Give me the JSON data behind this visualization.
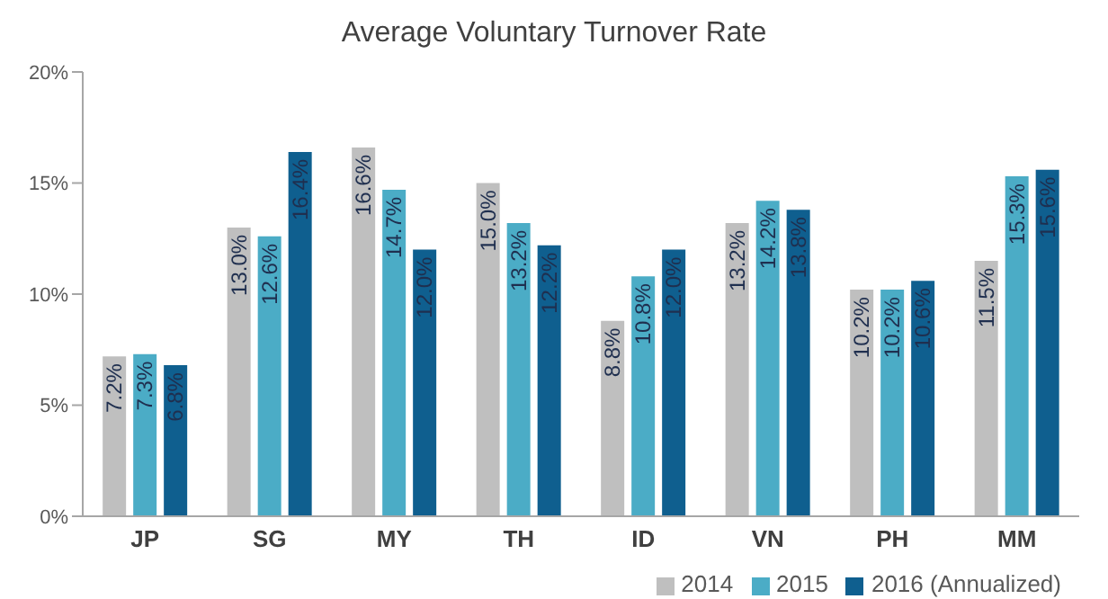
{
  "chart_data": {
    "type": "bar",
    "title": "Average Voluntary Turnover Rate",
    "categories": [
      "JP",
      "SG",
      "MY",
      "TH",
      "ID",
      "VN",
      "PH",
      "MM"
    ],
    "series": [
      {
        "name": "2014",
        "color": "#bfbfbf",
        "values": [
          7.2,
          13.0,
          16.6,
          15.0,
          8.8,
          13.2,
          10.2,
          11.5
        ],
        "value_labels": [
          "7.2%",
          "13.0%",
          "16.6%",
          "15.0%",
          "8.8%",
          "13.2%",
          "10.2%",
          "11.5%"
        ]
      },
      {
        "name": "2015",
        "color": "#4bacc6",
        "values": [
          7.3,
          12.6,
          14.7,
          13.2,
          10.8,
          14.2,
          10.2,
          15.3
        ],
        "value_labels": [
          "7.3%",
          "12.6%",
          "14.7%",
          "13.2%",
          "10.8%",
          "14.2%",
          "10.2%",
          "15.3%"
        ]
      },
      {
        "name": "2016 (Annualized)",
        "color": "#0f5f8f",
        "values": [
          6.8,
          16.4,
          12.0,
          12.2,
          12.0,
          13.8,
          10.6,
          15.6
        ],
        "value_labels": [
          "6.8%",
          "16.4%",
          "12.0%",
          "12.2%",
          "12.0%",
          "13.8%",
          "10.6%",
          "15.6%"
        ]
      }
    ],
    "ylim": [
      0,
      20
    ],
    "yticks": [
      {
        "value": 0,
        "label": "0%"
      },
      {
        "value": 5,
        "label": "5%"
      },
      {
        "value": 10,
        "label": "10%"
      },
      {
        "value": 15,
        "label": "15%"
      },
      {
        "value": 20,
        "label": "20%"
      }
    ],
    "grid": false,
    "legend": "bottom right"
  }
}
